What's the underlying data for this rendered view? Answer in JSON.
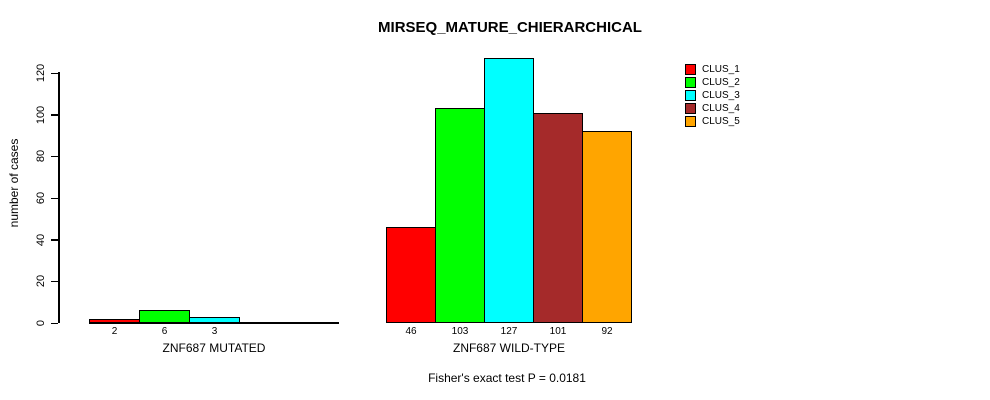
{
  "title": "MIRSEQ_MATURE_CHIERARCHICAL",
  "footnote": "Fisher's exact test P = 0.0181",
  "chart_data": {
    "type": "bar",
    "title": "MIRSEQ_MATURE_CHIERARCHICAL",
    "ylabel": "number of cases",
    "xlabel": "",
    "ylim": [
      0,
      130
    ],
    "yticks": [
      0,
      20,
      40,
      60,
      80,
      100,
      120
    ],
    "grid": false,
    "legend_position": "top-right",
    "clusters": [
      {
        "name": "CLUS_1",
        "color": "#FF0000"
      },
      {
        "name": "CLUS_2",
        "color": "#00FF00"
      },
      {
        "name": "CLUS_3",
        "color": "#00FFFF"
      },
      {
        "name": "CLUS_4",
        "color": "#A52A2A"
      },
      {
        "name": "CLUS_5",
        "color": "#FFA500"
      }
    ],
    "groups": [
      {
        "label": "ZNF687 MUTATED",
        "values": [
          2,
          6,
          3,
          0,
          0
        ]
      },
      {
        "label": "ZNF687 WILD-TYPE",
        "values": [
          46,
          103,
          127,
          101,
          92
        ]
      }
    ],
    "annotation": "Fisher's exact test P = 0.0181"
  }
}
